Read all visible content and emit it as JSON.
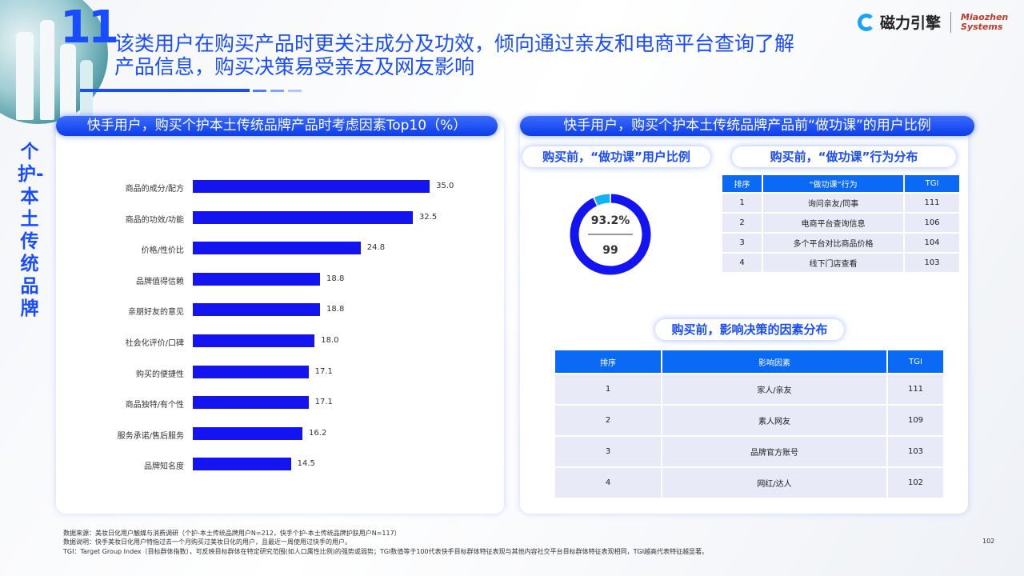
{
  "header": {
    "number": "11",
    "title_line1": "该类用户在购买产品时更关注成分及功效，倾向通过亲友和电商平台查询了解",
    "title_line2": "产品信息，购买决策易受亲友及网友影响",
    "logo_cn": "磁力引擎",
    "logo_en_1": "Miaozhen",
    "logo_en_2": "Systems"
  },
  "side_label": "个护-本土传统品牌",
  "left_panel": {
    "title": "快手用户，购买个护本土传统品牌产品时考虑因素Top10（%）"
  },
  "right_panel": {
    "title": "快手用户，购买个护本土传统品牌产品前“做功课”的用户比例",
    "donut_title": "购买前，“做功课”用户比例",
    "donut_percent": "93.2%",
    "donut_tgi": "99",
    "table1_title": "购买前，“做功课”行为分布",
    "table1": {
      "headers": [
        "排序",
        "“做功课”行为",
        "TGI"
      ],
      "rows": [
        [
          "1",
          "询问亲友/同事",
          "111"
        ],
        [
          "2",
          "电商平台查询信息",
          "106"
        ],
        [
          "3",
          "多个平台对比商品价格",
          "104"
        ],
        [
          "4",
          "线下门店查看",
          "103"
        ]
      ]
    },
    "table2_title": "购买前，影响决策的因素分布",
    "table2": {
      "headers": [
        "排序",
        "影响因素",
        "TGI"
      ],
      "rows": [
        [
          "1",
          "家人/亲友",
          "111"
        ],
        [
          "2",
          "素人网友",
          "109"
        ],
        [
          "3",
          "品牌官方账号",
          "103"
        ],
        [
          "4",
          "网红/达人",
          "102"
        ]
      ]
    }
  },
  "chart_data": [
    {
      "type": "bar",
      "orientation": "horizontal",
      "title": "快手用户，购买个护本土传统品牌产品时考虑因素Top10（%）",
      "categories": [
        "商品的成分/配方",
        "商品的功效/功能",
        "价格/性价比",
        "品牌值得信赖",
        "亲朋好友的意见",
        "社会化评价/口碑",
        "购买的便捷性",
        "商品独特/有个性",
        "服务承诺/售后服务",
        "品牌知名度"
      ],
      "values": [
        35.0,
        32.5,
        24.8,
        18.8,
        18.8,
        18.0,
        17.1,
        17.1,
        16.2,
        14.5
      ],
      "color": "#1414f0",
      "grid": false
    },
    {
      "type": "pie",
      "subtype": "donut",
      "title": "购买前，“做功课”用户比例",
      "values": [
        93.2,
        6.8
      ],
      "colors": [
        "#1414f0",
        "#12b0f5"
      ]
    }
  ],
  "footer": {
    "line1": "数据来源：美妆日化用户触媒与消费调研（个护-本土传统品牌用户N=212，快手个护-本土传统品牌护肤用户N=117）",
    "line2": "数据说明：快手美妆日化用户特指过去一个月购买过美妆日化的用户，且最近一周使用过快手的用户。",
    "line3": "TGI：Target Group Index（目标群体指数），可反映目标群体在特定研究范围(如人口属性比例)的强势或弱势；TGI数值等于100代表快手目标群体特征表现与其他内容社交平台目标群体特征表现相同，TGI越高代表特征越显著。",
    "page": "102"
  }
}
